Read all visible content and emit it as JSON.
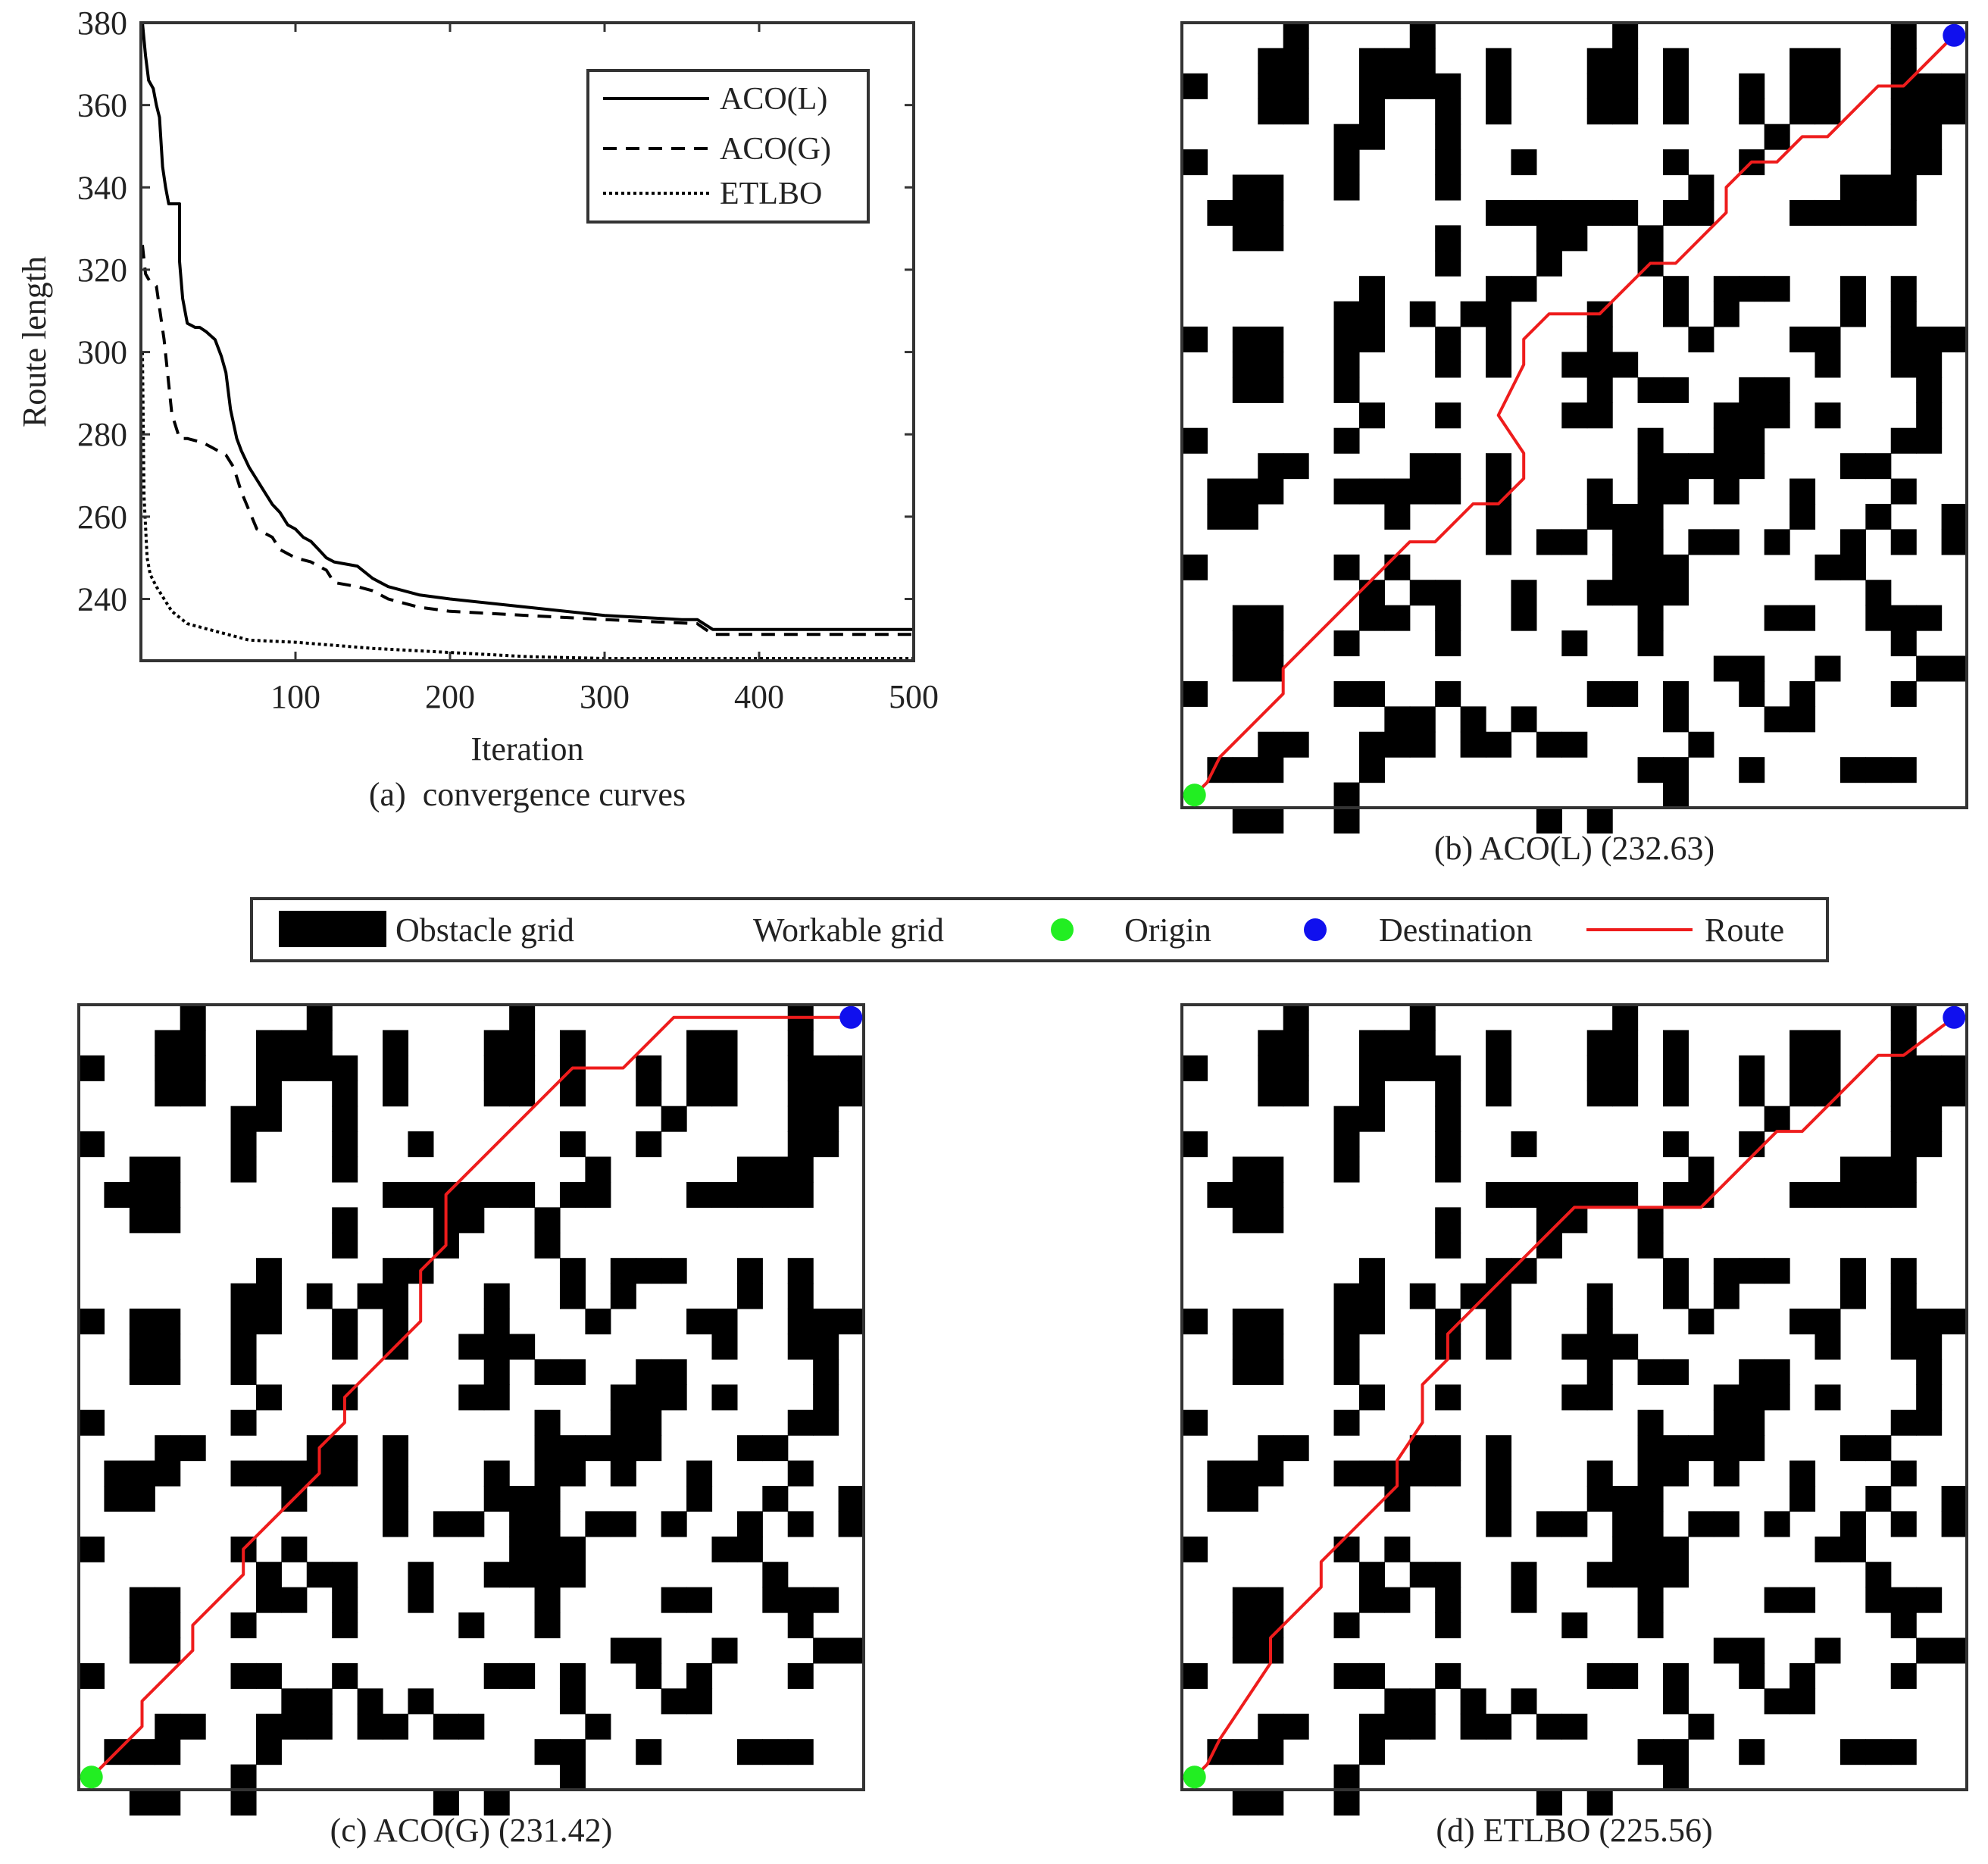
{
  "chart_data": [
    {
      "id": "a",
      "type": "line",
      "caption": "(a)  convergence curves",
      "xlabel": "Iteration",
      "ylabel": "Route length",
      "xlim": [
        0,
        500
      ],
      "ylim": [
        225,
        380
      ],
      "xticks": [
        100,
        200,
        300,
        400,
        500
      ],
      "yticks": [
        240,
        260,
        280,
        300,
        320,
        340,
        360,
        380
      ],
      "grid": false,
      "legend_position": "top-right",
      "series": [
        {
          "name": "ACO(L)",
          "style": "solid",
          "x": [
            1,
            3,
            5,
            8,
            10,
            12,
            14,
            16,
            18,
            25,
            25,
            27,
            30,
            35,
            38,
            42,
            48,
            52,
            55,
            58,
            62,
            65,
            70,
            75,
            80,
            85,
            90,
            95,
            100,
            105,
            110,
            115,
            120,
            125,
            140,
            150,
            155,
            160,
            180,
            200,
            250,
            300,
            350,
            360,
            370,
            500
          ],
          "y": [
            380,
            372,
            366,
            364,
            360,
            357,
            345,
            340,
            336,
            336,
            322,
            313,
            307,
            306,
            306,
            305,
            303,
            299,
            295,
            286,
            279,
            276,
            272,
            269,
            266,
            263,
            261,
            258,
            257,
            255,
            254,
            252,
            250,
            249,
            248,
            245,
            244,
            243,
            241,
            240,
            238,
            236,
            235,
            235,
            232.6,
            232.6
          ]
        },
        {
          "name": "ACO(G)",
          "style": "dashed",
          "x": [
            1,
            3,
            6,
            10,
            15,
            20,
            25,
            30,
            40,
            45,
            50,
            55,
            60,
            65,
            75,
            85,
            90,
            100,
            110,
            120,
            125,
            140,
            150,
            160,
            180,
            200,
            300,
            360,
            370,
            500
          ],
          "y": [
            326,
            319,
            317,
            316,
            303,
            285,
            279,
            279,
            278,
            277,
            276,
            275,
            272,
            266,
            257,
            255,
            252,
            250,
            249,
            247,
            244,
            243,
            242,
            240,
            238,
            237,
            235,
            234,
            231.4,
            231.4
          ]
        },
        {
          "name": "ETLBO",
          "style": "dotted",
          "x": [
            1,
            2,
            4,
            6,
            10,
            15,
            20,
            30,
            50,
            70,
            100,
            150,
            200,
            250,
            300,
            500
          ],
          "y": [
            300,
            265,
            250,
            246,
            243,
            240,
            237,
            234,
            232,
            230,
            229.5,
            228,
            227,
            226,
            225.56,
            225.56
          ]
        }
      ]
    },
    {
      "id": "b",
      "type": "grid_map",
      "caption": "(b) ACO(L) (232.63)",
      "route": [
        [
          0.5,
          0.5
        ],
        [
          1,
          1
        ],
        [
          1.5,
          2
        ],
        [
          4,
          4.5
        ],
        [
          4,
          5.5
        ],
        [
          9,
          10.5
        ],
        [
          10,
          10.5
        ],
        [
          11.5,
          12
        ],
        [
          12.5,
          12
        ],
        [
          13.5,
          13
        ],
        [
          13.5,
          14
        ],
        [
          12.5,
          15.5
        ],
        [
          13.5,
          17.5
        ],
        [
          13.5,
          18.5
        ],
        [
          14.5,
          19.5
        ],
        [
          16.5,
          19.5
        ],
        [
          18.5,
          21.5
        ],
        [
          19.5,
          21.5
        ],
        [
          21.5,
          23.5
        ],
        [
          21.5,
          24.5
        ],
        [
          22.5,
          25.5
        ],
        [
          23.5,
          25.5
        ],
        [
          24.5,
          26.5
        ],
        [
          25.5,
          26.5
        ],
        [
          27.5,
          28.5
        ],
        [
          28.5,
          28.5
        ],
        [
          30.5,
          30.5
        ]
      ]
    },
    {
      "id": "c",
      "type": "grid_map",
      "caption": "(c) ACO(G) (231.42)",
      "route": [
        [
          0.5,
          0.5
        ],
        [
          2.5,
          2.5
        ],
        [
          2.5,
          3.5
        ],
        [
          4.5,
          5.5
        ],
        [
          4.5,
          6.5
        ],
        [
          6.5,
          8.5
        ],
        [
          6.5,
          9.5
        ],
        [
          9.5,
          12.5
        ],
        [
          9.5,
          13.5
        ],
        [
          10.5,
          14.5
        ],
        [
          10.5,
          15.5
        ],
        [
          13.5,
          18.5
        ],
        [
          13.5,
          20.5
        ],
        [
          14.5,
          21.5
        ],
        [
          14.5,
          23.5
        ],
        [
          19.5,
          28.5
        ],
        [
          21.5,
          28.5
        ],
        [
          23.5,
          30.5
        ],
        [
          30.5,
          30.5
        ]
      ]
    },
    {
      "id": "d",
      "type": "grid_map",
      "caption": "(d) ETLBO (225.56)",
      "route": [
        [
          0.5,
          0.5
        ],
        [
          1,
          1
        ],
        [
          1.5,
          2
        ],
        [
          3.5,
          5
        ],
        [
          3.5,
          6
        ],
        [
          5.5,
          8
        ],
        [
          5.5,
          9
        ],
        [
          8.5,
          12
        ],
        [
          8.5,
          13
        ],
        [
          9.5,
          14.5
        ],
        [
          9.5,
          16
        ],
        [
          10.5,
          17
        ],
        [
          10.5,
          18
        ],
        [
          11.5,
          19
        ],
        [
          15.5,
          23
        ],
        [
          20.5,
          23
        ],
        [
          23.5,
          26
        ],
        [
          24.5,
          26
        ],
        [
          27.5,
          29
        ],
        [
          28.5,
          29
        ],
        [
          30.5,
          30.5
        ]
      ]
    }
  ],
  "map": {
    "size": 31,
    "obstacle_rows": [
      "....#....#.......#..........#..",
      "...##..###..#...##.#....##..#..",
      "#..##..####.#...##.#..#.##..###",
      "...##..#..#.#...##.#..#.##..###",
      "......##..#............#....##.",
      "#.....#...#..#.....#..#.....##.",
      "..##..#...#.........#.....###..",
      ".###........######.##...#####..",
      "..##......#...##..#...........",
      "..........#...#...#............",
      ".......#....##.....#.###..#.#..",
      "......##.#.##...#..#.#....#.#..",
      "#.##..##..#.#...#...#...##..###",
      "..##..#...#.#..###.......#..##.",
      "..##..#.........#.##..##.....#.",
      ".......#..#....##....###.#...#.",
      "#.....#...........#..##.....##.",
      "...##....##.#.....#####...##...",
      ".###..#####.#...#.##.#..#...#..",
      ".##.....#...#...###.....#..#..#",
      "............#.##.##.##.#..#.#.#",
      "#.....#.#........###.....##....",
      ".......#.##..#..####.......#...",
      "..##...##.#..#....#....##..###.",
      "..##..#...#....#..#.........#..",
      "..##.................##..#...##",
      "#.....##..#.....##.#..#.#...#..",
      "........##.#.#.....#...##......",
      "...##..###.##.##....#..........",
      ".###...#..........##..#...###..",
      "......#............#...........",
      "..##..#.......#.#.............."
    ]
  },
  "legend": {
    "items": [
      {
        "symbol": "obstacle",
        "label": "Obstacle grid"
      },
      {
        "symbol": "workable",
        "label": "Workable grid"
      },
      {
        "symbol": "origin",
        "label": "Origin"
      },
      {
        "symbol": "destination",
        "label": "Destination"
      },
      {
        "symbol": "route",
        "label": "Route"
      }
    ]
  },
  "colors": {
    "obstacle": "#000000",
    "workable": "#ffffff",
    "origin": "#22ee22",
    "destination": "#1010ee",
    "route": "#ee1c1c",
    "axis": "#333333"
  }
}
